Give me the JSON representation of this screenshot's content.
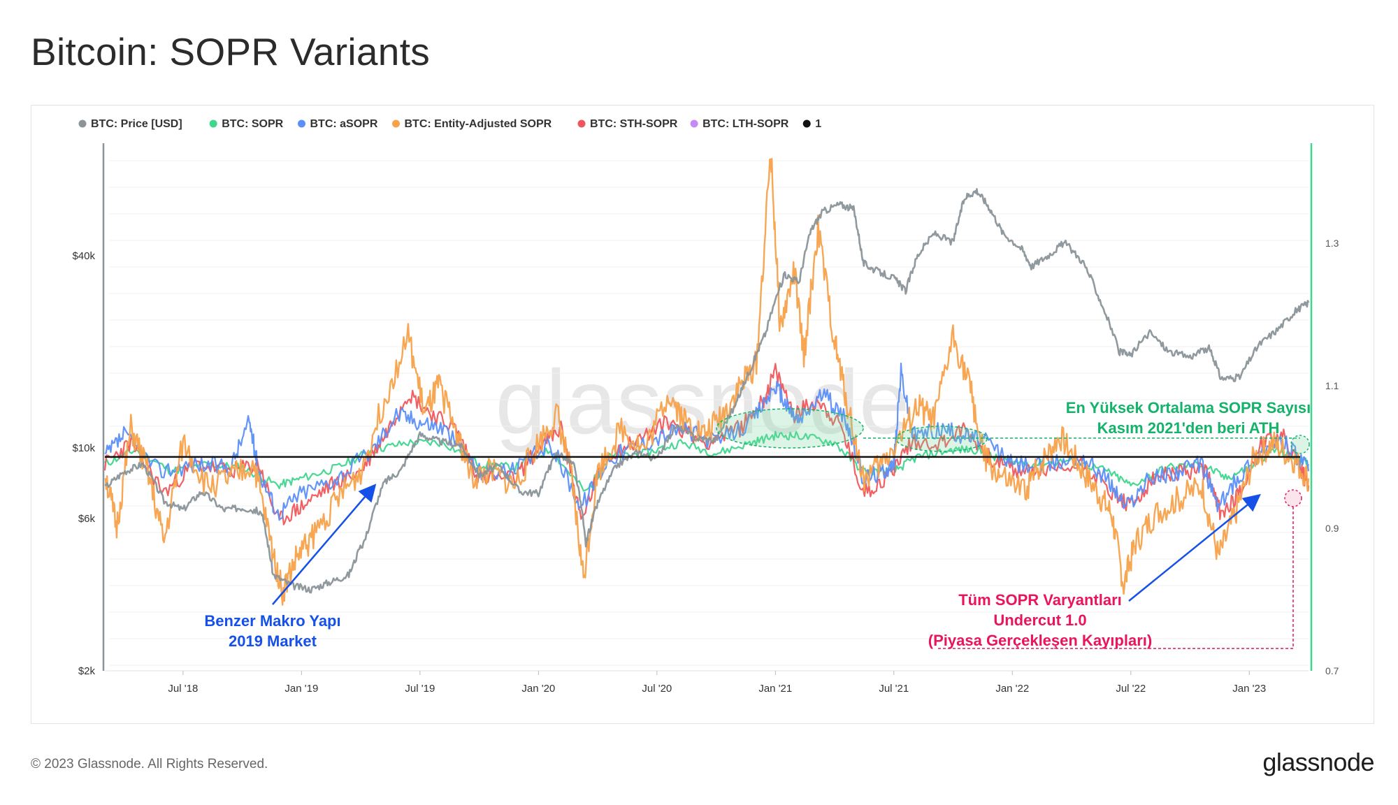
{
  "header": {
    "title": "Bitcoin: SOPR Variants"
  },
  "footer": {
    "copyright": "© 2023 Glassnode. All Rights Reserved.",
    "logo": "glassnode"
  },
  "watermark": "glassnode",
  "colors": {
    "price": "#8a9499",
    "sopr": "#3fd68e",
    "asopr": "#5b8ff9",
    "entity": "#f7a24b",
    "sth": "#f0575a",
    "lth": "#c78af5",
    "one": "#111111",
    "blue_annot": "#1550e8",
    "green_annot": "#14b26a",
    "pink_annot": "#e8145c"
  },
  "chart_data": {
    "type": "line",
    "title": "Bitcoin: SOPR Variants",
    "legend": [
      {
        "key": "price",
        "label": "BTC: Price [USD]",
        "color": "#8a9499",
        "enabled": true
      },
      {
        "key": "sopr",
        "label": "BTC: SOPR",
        "color": "#3fd68e",
        "enabled": true
      },
      {
        "key": "asopr",
        "label": "BTC: aSOPR",
        "color": "#5b8ff9",
        "enabled": true
      },
      {
        "key": "entity",
        "label": "BTC: Entity-Adjusted SOPR",
        "color": "#f7a24b",
        "enabled": true
      },
      {
        "key": "sth",
        "label": "BTC: STH-SOPR",
        "color": "#f0575a",
        "enabled": true
      },
      {
        "key": "lth",
        "label": "BTC: LTH-SOPR",
        "color": "#c78af5",
        "enabled": false
      },
      {
        "key": "one",
        "label": "1",
        "color": "#111111",
        "enabled": true
      }
    ],
    "x_range": [
      2018.17,
      2023.25
    ],
    "x_ticks": [
      {
        "label": "Jul '18",
        "t": 2018.5
      },
      {
        "label": "Jan '19",
        "t": 2019.0
      },
      {
        "label": "Jul '19",
        "t": 2019.5
      },
      {
        "label": "Jan '20",
        "t": 2020.0
      },
      {
        "label": "Jul '20",
        "t": 2020.5
      },
      {
        "label": "Jan '21",
        "t": 2021.0
      },
      {
        "label": "Jul '21",
        "t": 2021.5
      },
      {
        "label": "Jan '22",
        "t": 2022.0
      },
      {
        "label": "Jul '22",
        "t": 2022.5
      },
      {
        "label": "Jan '23",
        "t": 2023.0
      }
    ],
    "y_left": {
      "scale": "log",
      "range": [
        2000,
        90000
      ],
      "ticks": [
        {
          "label": "$2k",
          "v": 2000
        },
        {
          "label": "$6k",
          "v": 6000
        },
        {
          "label": "$10k",
          "v": 10000
        },
        {
          "label": "$40k",
          "v": 40000
        }
      ]
    },
    "y_right": {
      "scale": "linear",
      "range": [
        0.7,
        1.44
      ],
      "ticks": [
        {
          "label": "0.7",
          "v": 0.7
        },
        {
          "label": "0.9",
          "v": 0.9
        },
        {
          "label": "1.1",
          "v": 1.1
        },
        {
          "label": "1.3",
          "v": 1.3
        }
      ]
    },
    "price": [
      [
        2018.17,
        7500
      ],
      [
        2018.25,
        8400
      ],
      [
        2018.33,
        8900
      ],
      [
        2018.42,
        6800
      ],
      [
        2018.5,
        6400
      ],
      [
        2018.58,
        7300
      ],
      [
        2018.67,
        6400
      ],
      [
        2018.75,
        6500
      ],
      [
        2018.83,
        6300
      ],
      [
        2018.88,
        4000
      ],
      [
        2018.96,
        3700
      ],
      [
        2019.04,
        3600
      ],
      [
        2019.12,
        3800
      ],
      [
        2019.2,
        4000
      ],
      [
        2019.27,
        5200
      ],
      [
        2019.35,
        7800
      ],
      [
        2019.42,
        8500
      ],
      [
        2019.5,
        11000
      ],
      [
        2019.58,
        10500
      ],
      [
        2019.67,
        10200
      ],
      [
        2019.75,
        8200
      ],
      [
        2019.83,
        8800
      ],
      [
        2019.92,
        7300
      ],
      [
        2020.0,
        7200
      ],
      [
        2020.08,
        9700
      ],
      [
        2020.15,
        8800
      ],
      [
        2020.2,
        5000
      ],
      [
        2020.25,
        6700
      ],
      [
        2020.33,
        8800
      ],
      [
        2020.42,
        9700
      ],
      [
        2020.5,
        9200
      ],
      [
        2020.58,
        11700
      ],
      [
        2020.67,
        10700
      ],
      [
        2020.75,
        10600
      ],
      [
        2020.83,
        13500
      ],
      [
        2020.9,
        18000
      ],
      [
        2020.96,
        23000
      ],
      [
        2021.04,
        35000
      ],
      [
        2021.1,
        33000
      ],
      [
        2021.15,
        48000
      ],
      [
        2021.2,
        55000
      ],
      [
        2021.27,
        58000
      ],
      [
        2021.33,
        56000
      ],
      [
        2021.37,
        38000
      ],
      [
        2021.42,
        36000
      ],
      [
        2021.5,
        34000
      ],
      [
        2021.55,
        31000
      ],
      [
        2021.6,
        40000
      ],
      [
        2021.67,
        47000
      ],
      [
        2021.75,
        44000
      ],
      [
        2021.8,
        61000
      ],
      [
        2021.85,
        64000
      ],
      [
        2021.9,
        57000
      ],
      [
        2021.96,
        47000
      ],
      [
        2022.04,
        42000
      ],
      [
        2022.08,
        37000
      ],
      [
        2022.15,
        40000
      ],
      [
        2022.22,
        44000
      ],
      [
        2022.3,
        38000
      ],
      [
        2022.37,
        29000
      ],
      [
        2022.45,
        20000
      ],
      [
        2022.5,
        19500
      ],
      [
        2022.58,
        23000
      ],
      [
        2022.66,
        20000
      ],
      [
        2022.75,
        19300
      ],
      [
        2022.83,
        20500
      ],
      [
        2022.88,
        16500
      ],
      [
        2022.96,
        16600
      ],
      [
        2023.04,
        21000
      ],
      [
        2023.12,
        23500
      ],
      [
        2023.2,
        27000
      ],
      [
        2023.25,
        28500
      ]
    ],
    "sopr": [
      [
        2018.17,
        0.99
      ],
      [
        2018.3,
        1.01
      ],
      [
        2018.45,
        0.98
      ],
      [
        2018.6,
        0.99
      ],
      [
        2018.75,
        0.985
      ],
      [
        2018.9,
        0.96
      ],
      [
        2019.0,
        0.97
      ],
      [
        2019.15,
        0.985
      ],
      [
        2019.3,
        1.01
      ],
      [
        2019.45,
        1.02
      ],
      [
        2019.6,
        1.02
      ],
      [
        2019.75,
        0.99
      ],
      [
        2019.9,
        0.985
      ],
      [
        2020.05,
        1.01
      ],
      [
        2020.2,
        0.95
      ],
      [
        2020.3,
        1.0
      ],
      [
        2020.45,
        1.005
      ],
      [
        2020.6,
        1.02
      ],
      [
        2020.75,
        1.005
      ],
      [
        2020.9,
        1.02
      ],
      [
        2021.0,
        1.03
      ],
      [
        2021.1,
        1.03
      ],
      [
        2021.25,
        1.02
      ],
      [
        2021.37,
        0.98
      ],
      [
        2021.5,
        0.98
      ],
      [
        2021.6,
        1.0
      ],
      [
        2021.75,
        1.01
      ],
      [
        2021.85,
        1.01
      ],
      [
        2021.95,
        0.995
      ],
      [
        2022.1,
        0.99
      ],
      [
        2022.25,
        0.995
      ],
      [
        2022.4,
        0.98
      ],
      [
        2022.5,
        0.96
      ],
      [
        2022.65,
        0.985
      ],
      [
        2022.8,
        0.99
      ],
      [
        2022.9,
        0.97
      ],
      [
        2023.0,
        0.985
      ],
      [
        2023.1,
        1.01
      ],
      [
        2023.2,
        1.0
      ],
      [
        2023.25,
        0.99
      ]
    ],
    "asopr": [
      [
        2018.17,
        1.0
      ],
      [
        2018.25,
        1.03
      ],
      [
        2018.4,
        0.98
      ],
      [
        2018.55,
        0.99
      ],
      [
        2018.7,
        0.985
      ],
      [
        2018.78,
        1.05
      ],
      [
        2018.82,
        0.98
      ],
      [
        2018.9,
        0.92
      ],
      [
        2019.0,
        0.95
      ],
      [
        2019.15,
        0.97
      ],
      [
        2019.3,
        1.01
      ],
      [
        2019.4,
        1.06
      ],
      [
        2019.5,
        1.05
      ],
      [
        2019.6,
        1.04
      ],
      [
        2019.75,
        0.98
      ],
      [
        2019.9,
        0.98
      ],
      [
        2020.05,
        1.02
      ],
      [
        2020.18,
        0.93
      ],
      [
        2020.3,
        1.0
      ],
      [
        2020.45,
        1.02
      ],
      [
        2020.6,
        1.04
      ],
      [
        2020.75,
        1.02
      ],
      [
        2020.9,
        1.05
      ],
      [
        2021.0,
        1.1
      ],
      [
        2021.05,
        1.07
      ],
      [
        2021.1,
        1.05
      ],
      [
        2021.2,
        1.09
      ],
      [
        2021.3,
        1.05
      ],
      [
        2021.37,
        0.97
      ],
      [
        2021.45,
        0.98
      ],
      [
        2021.5,
        0.99
      ],
      [
        2021.53,
        1.12
      ],
      [
        2021.58,
        1.03
      ],
      [
        2021.7,
        1.04
      ],
      [
        2021.8,
        1.03
      ],
      [
        2021.9,
        1.02
      ],
      [
        2022.0,
        0.99
      ],
      [
        2022.15,
        0.99
      ],
      [
        2022.3,
        1.0
      ],
      [
        2022.4,
        0.97
      ],
      [
        2022.48,
        0.93
      ],
      [
        2022.58,
        0.97
      ],
      [
        2022.7,
        0.98
      ],
      [
        2022.8,
        0.99
      ],
      [
        2022.87,
        0.93
      ],
      [
        2022.95,
        0.97
      ],
      [
        2023.05,
        1.01
      ],
      [
        2023.15,
        1.02
      ],
      [
        2023.25,
        0.98
      ]
    ],
    "entity": [
      [
        2018.17,
        0.98
      ],
      [
        2018.22,
        0.9
      ],
      [
        2018.28,
        1.04
      ],
      [
        2018.35,
        0.98
      ],
      [
        2018.42,
        0.88
      ],
      [
        2018.5,
        1.02
      ],
      [
        2018.6,
        0.96
      ],
      [
        2018.7,
        0.97
      ],
      [
        2018.8,
        0.99
      ],
      [
        2018.87,
        0.88
      ],
      [
        2018.92,
        0.81
      ],
      [
        2018.98,
        0.86
      ],
      [
        2019.05,
        0.89
      ],
      [
        2019.15,
        0.94
      ],
      [
        2019.25,
        0.98
      ],
      [
        2019.35,
        1.08
      ],
      [
        2019.45,
        1.17
      ],
      [
        2019.52,
        1.06
      ],
      [
        2019.58,
        1.1
      ],
      [
        2019.65,
        1.04
      ],
      [
        2019.72,
        0.97
      ],
      [
        2019.8,
        0.98
      ],
      [
        2019.9,
        0.96
      ],
      [
        2020.0,
        1.02
      ],
      [
        2020.08,
        1.06
      ],
      [
        2020.14,
        0.97
      ],
      [
        2020.19,
        0.83
      ],
      [
        2020.25,
        0.98
      ],
      [
        2020.35,
        1.04
      ],
      [
        2020.45,
        1.01
      ],
      [
        2020.55,
        1.09
      ],
      [
        2020.62,
        1.05
      ],
      [
        2020.7,
        1.03
      ],
      [
        2020.78,
        1.06
      ],
      [
        2020.85,
        1.1
      ],
      [
        2020.92,
        1.13
      ],
      [
        2020.98,
        1.43
      ],
      [
        2021.02,
        1.18
      ],
      [
        2021.08,
        1.26
      ],
      [
        2021.12,
        1.14
      ],
      [
        2021.18,
        1.32
      ],
      [
        2021.25,
        1.16
      ],
      [
        2021.3,
        1.08
      ],
      [
        2021.37,
        0.97
      ],
      [
        2021.45,
        0.99
      ],
      [
        2021.53,
        1.03
      ],
      [
        2021.6,
        1.07
      ],
      [
        2021.67,
        1.05
      ],
      [
        2021.75,
        1.17
      ],
      [
        2021.82,
        1.1
      ],
      [
        2021.88,
        1.0
      ],
      [
        2021.95,
        0.97
      ],
      [
        2022.05,
        0.95
      ],
      [
        2022.12,
        0.99
      ],
      [
        2022.2,
        1.03
      ],
      [
        2022.28,
        0.99
      ],
      [
        2022.36,
        0.95
      ],
      [
        2022.42,
        0.92
      ],
      [
        2022.47,
        0.82
      ],
      [
        2022.52,
        0.88
      ],
      [
        2022.6,
        0.92
      ],
      [
        2022.7,
        0.94
      ],
      [
        2022.8,
        0.96
      ],
      [
        2022.87,
        0.86
      ],
      [
        2022.94,
        0.92
      ],
      [
        2023.02,
        1.0
      ],
      [
        2023.1,
        1.02
      ],
      [
        2023.18,
        1.0
      ],
      [
        2023.25,
        0.97
      ]
    ],
    "sth": [
      [
        2018.17,
        0.99
      ],
      [
        2018.28,
        1.02
      ],
      [
        2018.42,
        0.95
      ],
      [
        2018.55,
        0.99
      ],
      [
        2018.7,
        0.98
      ],
      [
        2018.82,
        0.99
      ],
      [
        2018.9,
        0.91
      ],
      [
        2019.0,
        0.93
      ],
      [
        2019.12,
        0.96
      ],
      [
        2019.25,
        0.98
      ],
      [
        2019.35,
        1.03
      ],
      [
        2019.45,
        1.09
      ],
      [
        2019.55,
        1.06
      ],
      [
        2019.65,
        1.04
      ],
      [
        2019.75,
        0.97
      ],
      [
        2019.9,
        0.97
      ],
      [
        2020.02,
        1.02
      ],
      [
        2020.1,
        1.04
      ],
      [
        2020.18,
        0.91
      ],
      [
        2020.28,
        1.0
      ],
      [
        2020.4,
        1.02
      ],
      [
        2020.55,
        1.05
      ],
      [
        2020.7,
        1.02
      ],
      [
        2020.85,
        1.04
      ],
      [
        2020.95,
        1.08
      ],
      [
        2021.0,
        1.12
      ],
      [
        2021.08,
        1.06
      ],
      [
        2021.18,
        1.08
      ],
      [
        2021.28,
        1.04
      ],
      [
        2021.37,
        0.95
      ],
      [
        2021.47,
        0.97
      ],
      [
        2021.57,
        1.02
      ],
      [
        2021.7,
        1.02
      ],
      [
        2021.8,
        1.04
      ],
      [
        2021.9,
        1.0
      ],
      [
        2022.02,
        0.98
      ],
      [
        2022.15,
        0.98
      ],
      [
        2022.3,
        0.99
      ],
      [
        2022.42,
        0.95
      ],
      [
        2022.5,
        0.93
      ],
      [
        2022.6,
        0.97
      ],
      [
        2022.72,
        0.98
      ],
      [
        2022.82,
        0.98
      ],
      [
        2022.88,
        0.92
      ],
      [
        2022.96,
        0.95
      ],
      [
        2023.05,
        1.02
      ],
      [
        2023.14,
        1.03
      ],
      [
        2023.22,
        0.98
      ],
      [
        2023.25,
        0.96
      ]
    ],
    "reference_line": 1.0
  },
  "annotations": {
    "macro_line1": "Benzer Makro Yapı",
    "macro_line2": "2019 Market",
    "ath_line1": "En Yüksek Ortalama SOPR Sayısı",
    "ath_line2": "Kasım 2021'den beri ATH",
    "undercut_line1": "Tüm SOPR Varyantları",
    "undercut_line2": "Undercut 1.0",
    "undercut_line3": "(Piyasa Gerçekleşen Kayıpları)"
  }
}
